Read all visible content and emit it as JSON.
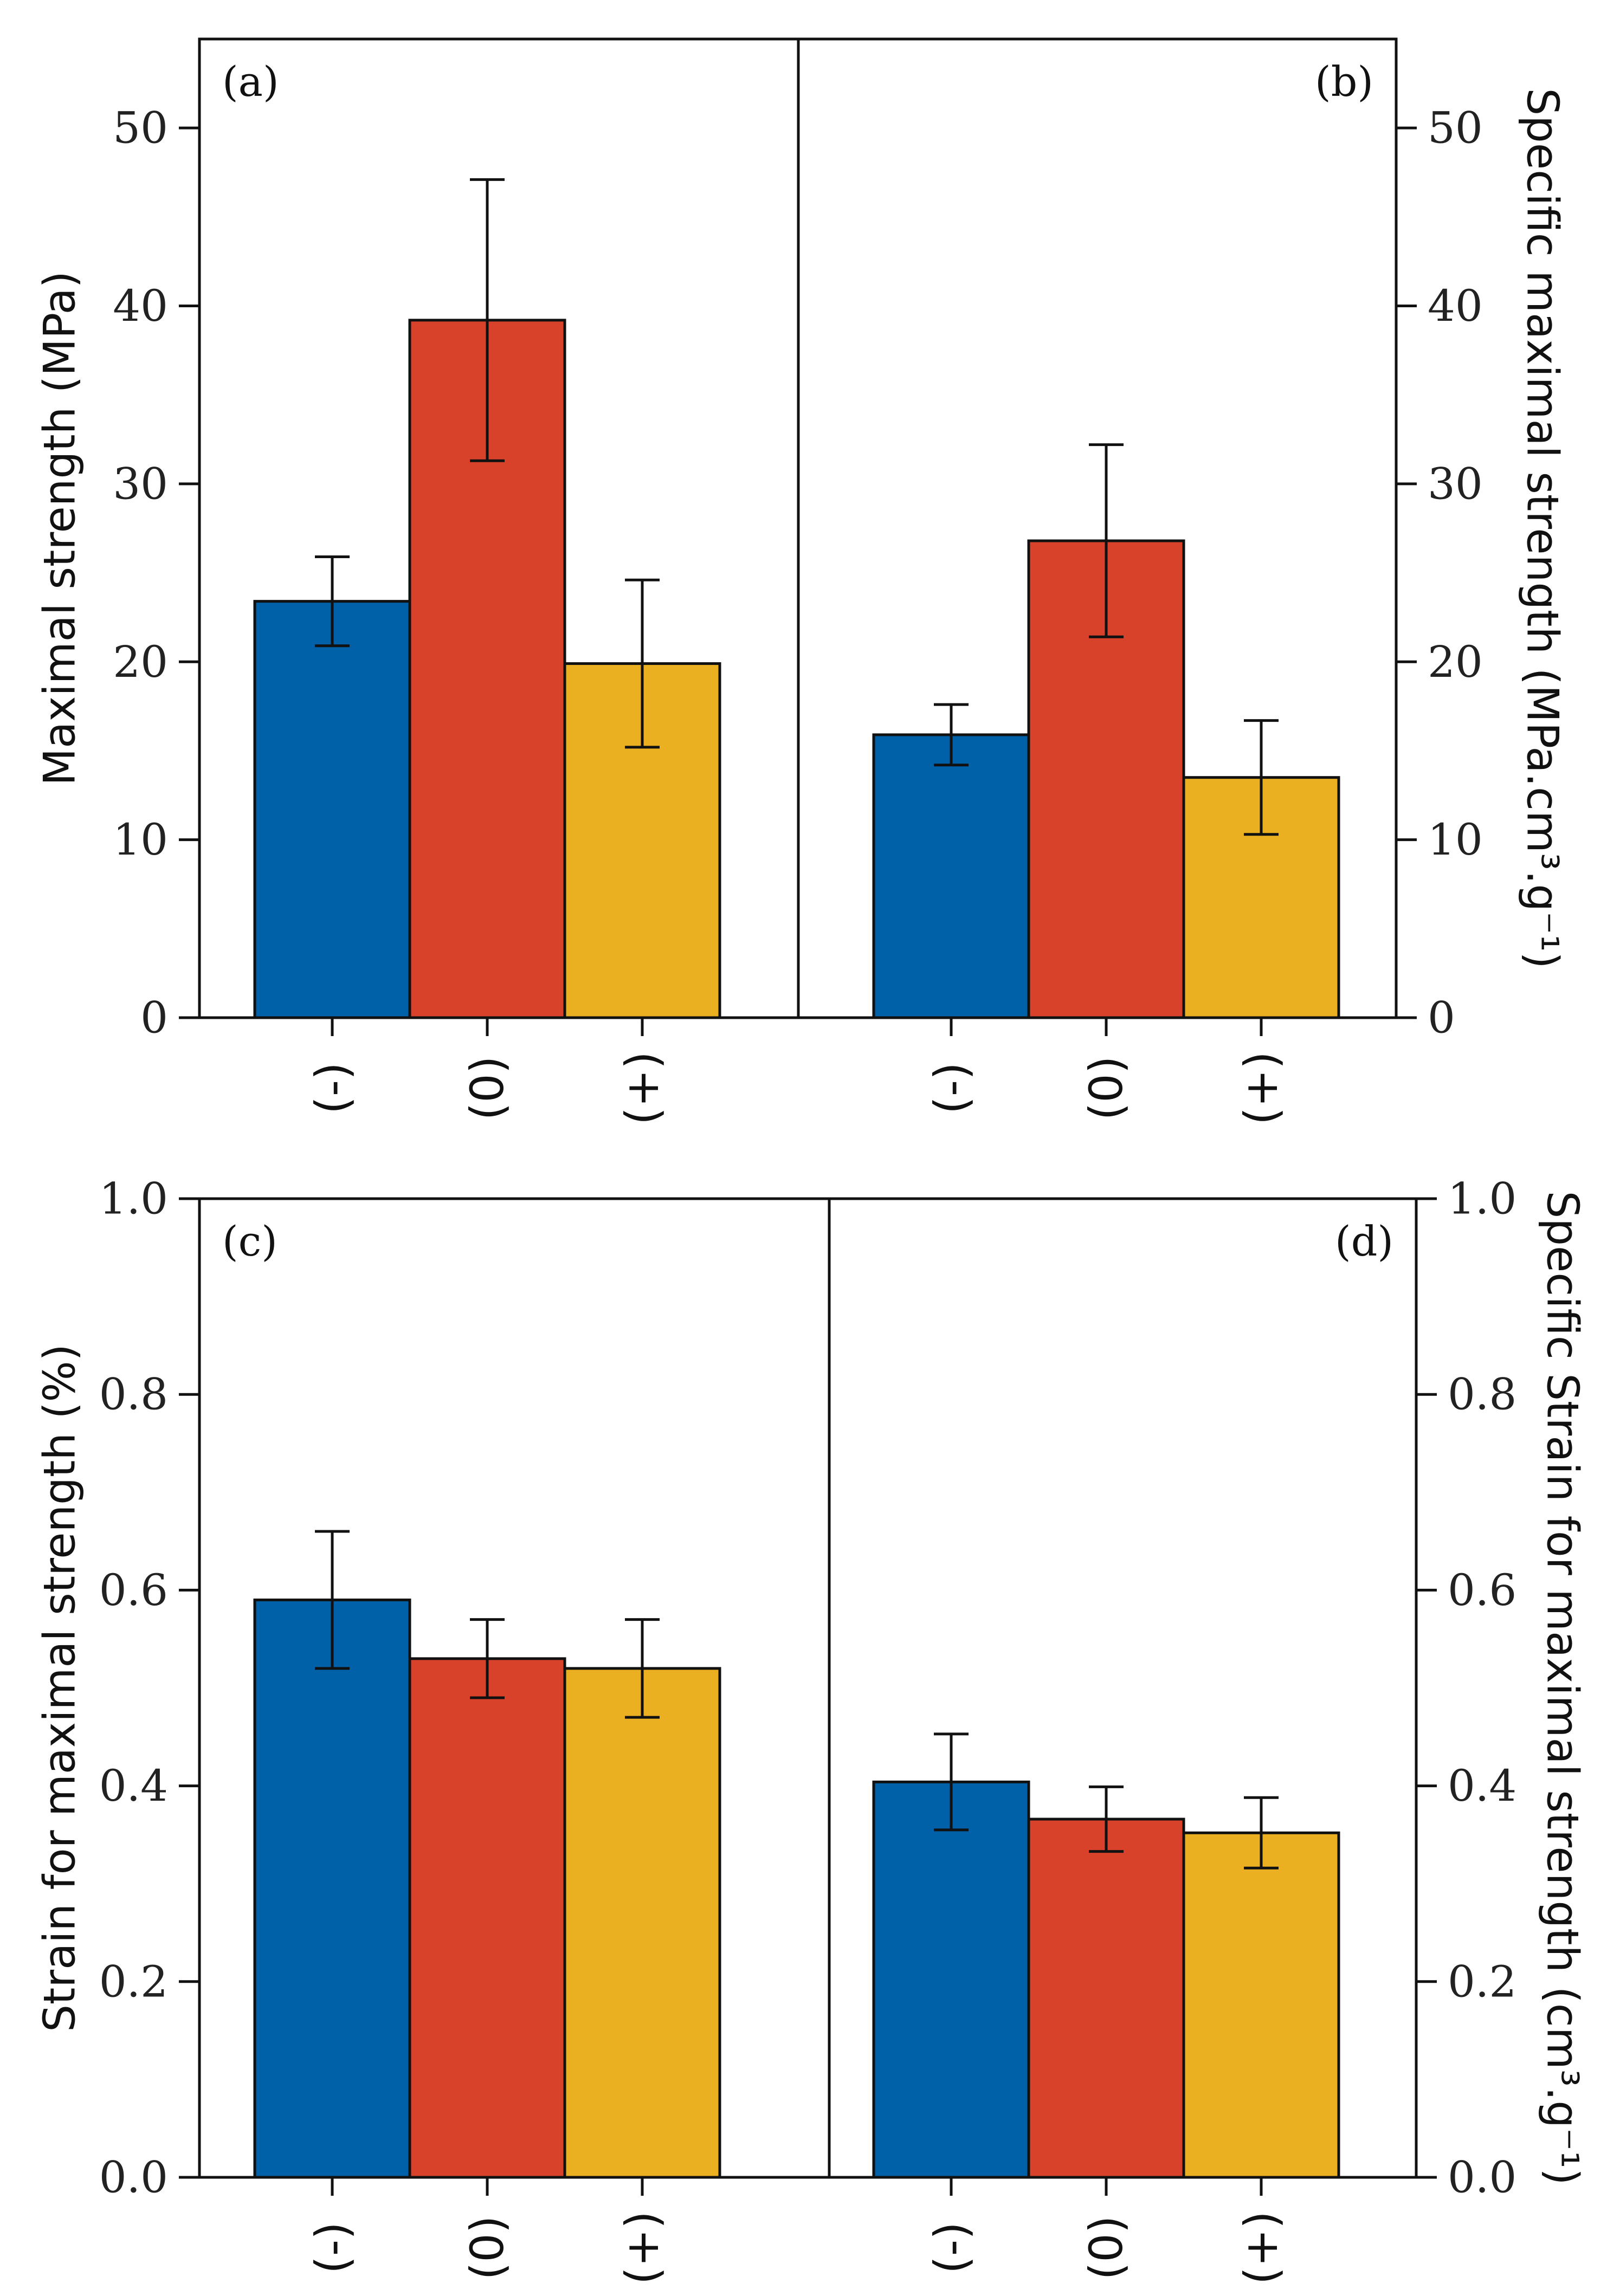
{
  "colors": {
    "(-)": "#0060a8",
    "(0)": "#d8422a",
    "(+)": "#ebb021"
  },
  "chart_data": [
    {
      "type": "bar",
      "panel": "(a)",
      "categories": [
        "(-)",
        "(0)",
        "(+)"
      ],
      "values": [
        23.4,
        39.2,
        19.9
      ],
      "errors": [
        2.5,
        7.9,
        4.7
      ],
      "ylabel": "Maximal strength (MPa)",
      "ylim": [
        0,
        55
      ],
      "yticks": [
        0,
        10,
        20,
        30,
        40,
        50
      ],
      "ytick_labels": [
        "0",
        "10",
        "20",
        "30",
        "40",
        "50"
      ],
      "axis_side": "left"
    },
    {
      "type": "bar",
      "panel": "(b)",
      "categories": [
        "(-)",
        "(0)",
        "(+)"
      ],
      "values": [
        15.9,
        26.8,
        13.5
      ],
      "errors": [
        1.7,
        5.4,
        3.2
      ],
      "ylabel": "Specific maximal strength (MPa.cm³.g⁻¹)",
      "ylim": [
        0,
        55
      ],
      "yticks": [
        0,
        10,
        20,
        30,
        40,
        50
      ],
      "ytick_labels": [
        "0",
        "10",
        "20",
        "30",
        "40",
        "50"
      ],
      "axis_side": "right"
    },
    {
      "type": "bar",
      "panel": "(c)",
      "categories": [
        "(-)",
        "(0)",
        "(+)"
      ],
      "values": [
        0.59,
        0.53,
        0.52
      ],
      "errors": [
        0.07,
        0.04,
        0.05
      ],
      "ylabel": "Strain for maximal strength (%)",
      "ylim": [
        0,
        1.0
      ],
      "yticks": [
        0,
        0.2,
        0.4,
        0.6,
        0.8,
        1.0
      ],
      "ytick_labels": [
        "0.0",
        "0.2",
        "0.4",
        "0.6",
        "0.8",
        "1.0"
      ],
      "axis_side": "left"
    },
    {
      "type": "bar",
      "panel": "(d)",
      "categories": [
        "(-)",
        "(0)",
        "(+)"
      ],
      "values": [
        0.404,
        0.366,
        0.352
      ],
      "errors": [
        0.049,
        0.033,
        0.036
      ],
      "ylabel": "Specific Strain for maximal strength (cm³.g⁻¹)",
      "ylim": [
        0,
        1.0
      ],
      "yticks": [
        0,
        0.2,
        0.4,
        0.6,
        0.8,
        1.0
      ],
      "ytick_labels": [
        "0.0",
        "0.2",
        "0.4",
        "0.6",
        "0.8",
        "1.0"
      ],
      "axis_side": "right"
    }
  ]
}
